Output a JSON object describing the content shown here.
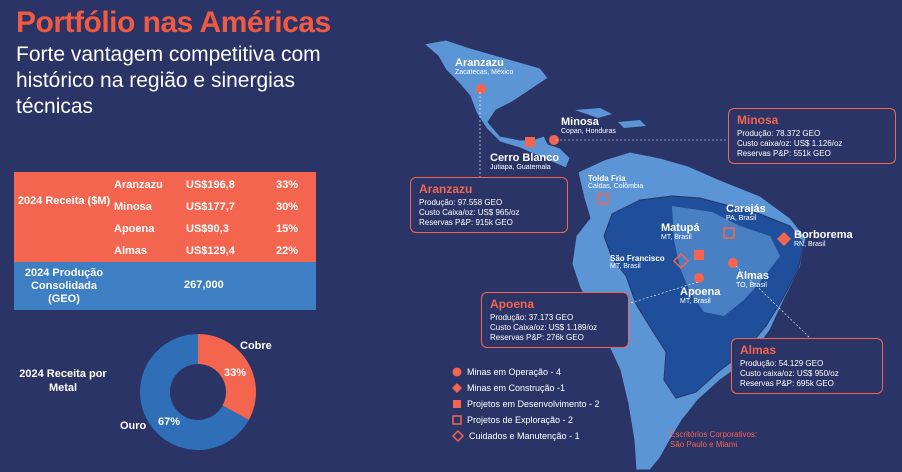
{
  "title": "Portfólio nas Américas",
  "subtitle": "Forte vantagem competitiva com histórico na região e sinergias técnicas",
  "revenue": {
    "label": "2024 Receita ($M)",
    "rows": [
      {
        "name": "Aranzazu",
        "value": "US$196,8",
        "pct": "33%"
      },
      {
        "name": "Minosa",
        "value": "US$177,7",
        "pct": "30%"
      },
      {
        "name": "Apoena",
        "value": "US$90,3",
        "pct": "15%"
      },
      {
        "name": "Almas",
        "value": "US$129,4",
        "pct": "22%"
      }
    ]
  },
  "production": {
    "label": "2024 Produção Consolidada (GEO)",
    "value": "267,000"
  },
  "chart_data": {
    "type": "pie",
    "title": "2024 Receita por Metal",
    "categories": [
      "Cobre",
      "Ouro"
    ],
    "values": [
      33,
      67
    ],
    "labels": [
      "33%",
      "67%"
    ],
    "colors": [
      "#f4654f",
      "#2f6fb8"
    ]
  },
  "sites": {
    "aranzazu": {
      "name": "Aranzazu",
      "loc": "Zacatecas, México"
    },
    "minosa": {
      "name": "Minosa",
      "loc": "Copan, Honduras"
    },
    "cerro_blanco": {
      "name": "Cerro Blanco",
      "loc": "Jutiapa, Guatemala"
    },
    "tolda_fria": {
      "name": "Tolda Fria",
      "loc": "Caldas, Colômbia"
    },
    "carajas": {
      "name": "Carajás",
      "loc": "PA, Brasil"
    },
    "matupa": {
      "name": "Matupá",
      "loc": "MT, Brasil"
    },
    "borborema": {
      "name": "Borborema",
      "loc": "RN, Brasil"
    },
    "sao_francisco": {
      "name": "São Francisco",
      "loc": "MT, Brasil"
    },
    "almas": {
      "name": "Almas",
      "loc": "TO, Brasil"
    },
    "apoena": {
      "name": "Apoena",
      "loc": "MT, Brasil"
    }
  },
  "boxes": {
    "minosa": {
      "title": "Minosa",
      "l1": "Produção: 78.372 GEO",
      "l2": "Custo caixa/oz: US$ 1.126/oz",
      "l3": "Reservas P&P: 551k GEO"
    },
    "aranzazu": {
      "title": "Aranzazu",
      "l1": "Produção: 97.558 GEO",
      "l2": "Custo Caixa/oz: US$ 965/oz",
      "l3": "Reservas P&P: 915k GEO"
    },
    "apoena": {
      "title": "Apoena",
      "l1": "Produção: 37.173 GEO",
      "l2": "Custo Caixa/oz: US$ 1.189/oz",
      "l3": "Reservas P&P: 276k GEO"
    },
    "almas": {
      "title": "Almas",
      "l1": "Produção: 54.129 GEO",
      "l2": "Custo caixa/oz: US$ 950/oz",
      "l3": "Reservas P&P: 695k GEO"
    }
  },
  "legend": [
    {
      "icon": "circle-marker-icon",
      "text": "Minas em Operação - 4"
    },
    {
      "icon": "diamond-marker-icon",
      "text": "Minas em Construção -1"
    },
    {
      "icon": "square-marker-icon",
      "text": "Projetos em Desenvolvimento - 2"
    },
    {
      "icon": "square-outline-marker-icon",
      "text": "Projetos de Exploração - 2"
    },
    {
      "icon": "diamond-outline-marker-icon",
      "text": "Cuidados e Manutenção - 1"
    }
  ],
  "offices": "Escritórios Corporativos: São Paulo e Miami",
  "colors": {
    "accent": "#f4654f",
    "background": "#2b3467",
    "blue": "#3d7fc2",
    "land": "#5b95d6",
    "brazil": "#1f4f9a"
  }
}
